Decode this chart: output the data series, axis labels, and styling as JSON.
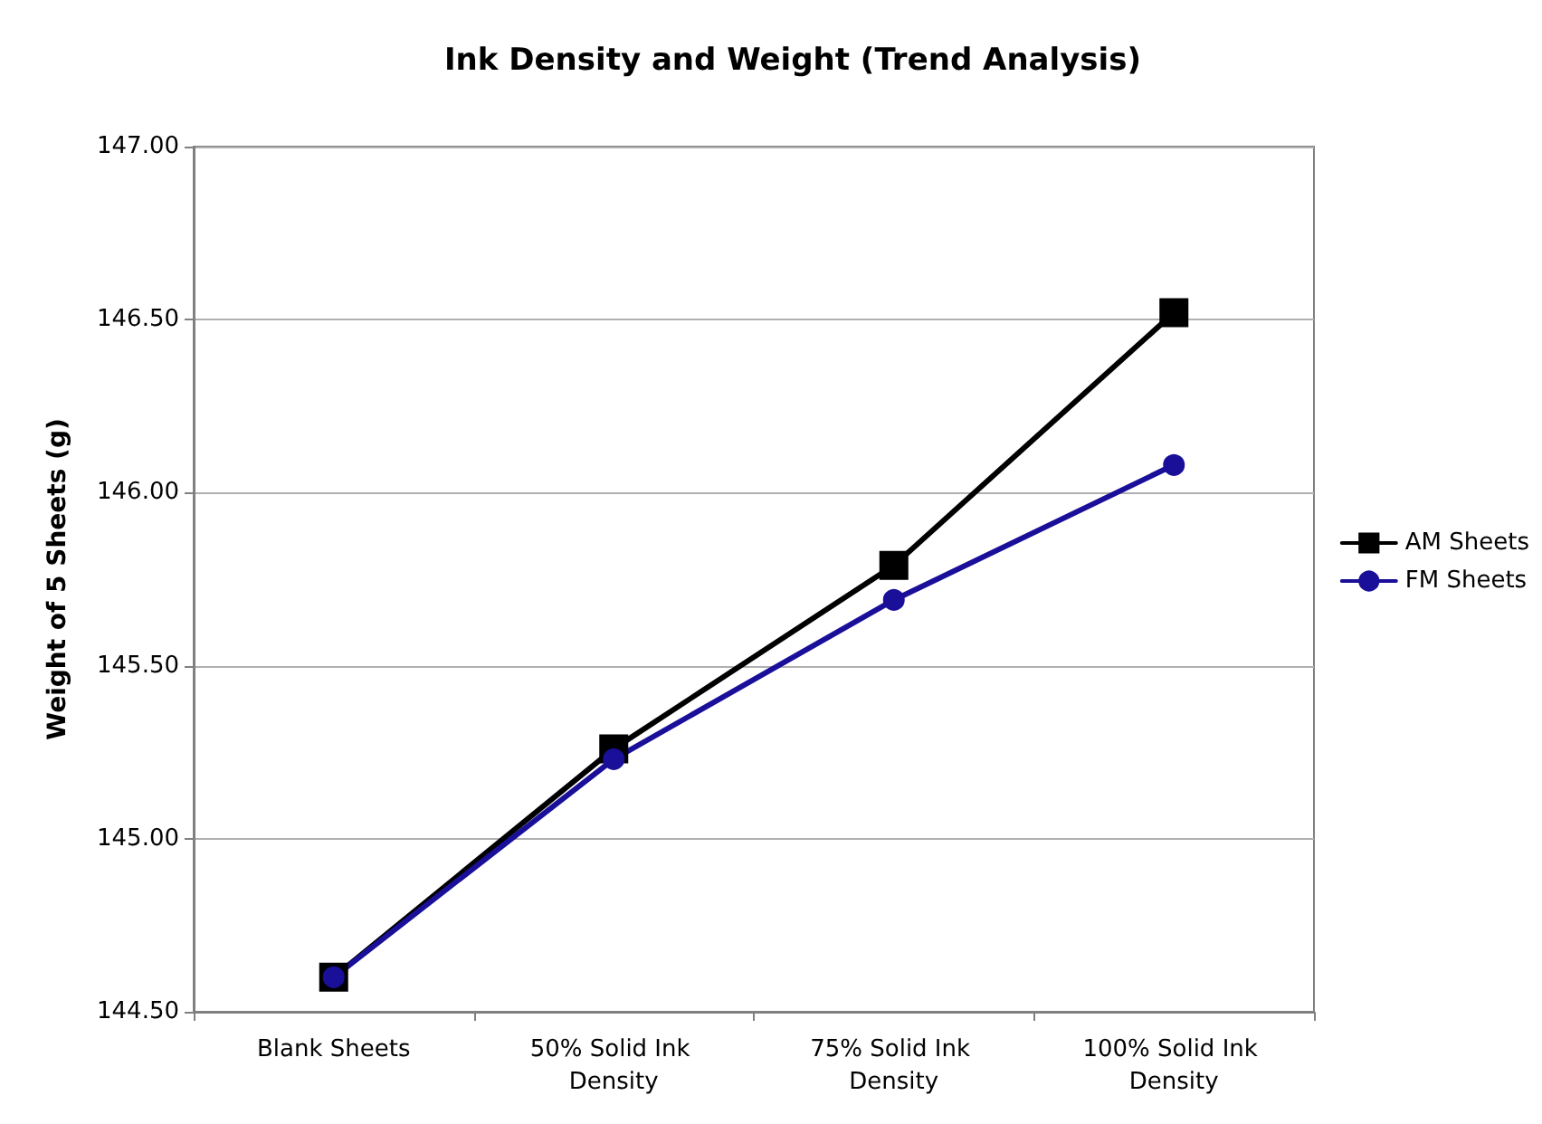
{
  "chart_data": {
    "type": "line",
    "title": "Ink Density and Weight (Trend Analysis)",
    "ylabel": "Weight of 5 Sheets (g)",
    "categories": [
      "Blank Sheets",
      "50% Solid Ink Density",
      "75% Solid Ink Density",
      "100% Solid Ink Density"
    ],
    "series": [
      {
        "name": "AM Sheets",
        "color": "#000000",
        "marker": "square",
        "values": [
          144.6,
          145.26,
          145.79,
          146.52
        ]
      },
      {
        "name": "FM Sheets",
        "color": "#1a0f99",
        "marker": "circle",
        "values": [
          144.6,
          145.23,
          145.69,
          146.08
        ]
      }
    ],
    "ylim": [
      144.5,
      147
    ],
    "yticks": [
      {
        "value": 144.5,
        "label": "144.50"
      },
      {
        "value": 145,
        "label": "145.00"
      },
      {
        "value": 145.5,
        "label": "145.50"
      },
      {
        "value": 146,
        "label": "146.00"
      },
      {
        "value": 146.5,
        "label": "146.50"
      },
      {
        "value": 147,
        "label": "147.00"
      }
    ],
    "grid": "y",
    "legend": "right",
    "line_style": "solid"
  }
}
